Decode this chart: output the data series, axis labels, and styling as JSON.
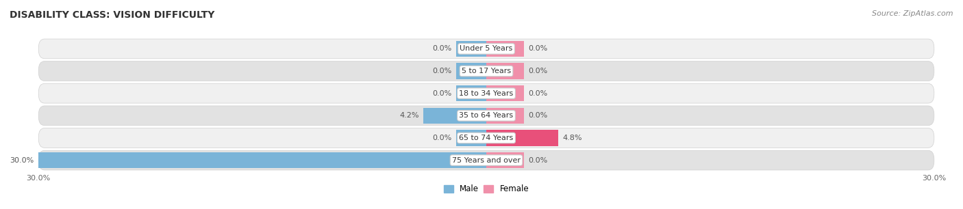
{
  "title": "DISABILITY CLASS: VISION DIFFICULTY",
  "source": "Source: ZipAtlas.com",
  "categories": [
    "Under 5 Years",
    "5 to 17 Years",
    "18 to 34 Years",
    "35 to 64 Years",
    "65 to 74 Years",
    "75 Years and over"
  ],
  "male_values": [
    0.0,
    0.0,
    0.0,
    4.2,
    0.0,
    30.0
  ],
  "female_values": [
    0.0,
    0.0,
    0.0,
    0.0,
    4.8,
    0.0
  ],
  "male_color": "#7ab4d8",
  "female_color": "#f090aa",
  "female_color_dark": "#e8507a",
  "row_bg_light": "#f0f0f0",
  "row_bg_dark": "#e2e2e2",
  "axis_max": 30.0,
  "label_color": "#555555",
  "title_color": "#333333",
  "legend_male_color": "#7ab4d8",
  "legend_female_color": "#f090aa",
  "stub_male": 2.0,
  "stub_female": 2.5
}
